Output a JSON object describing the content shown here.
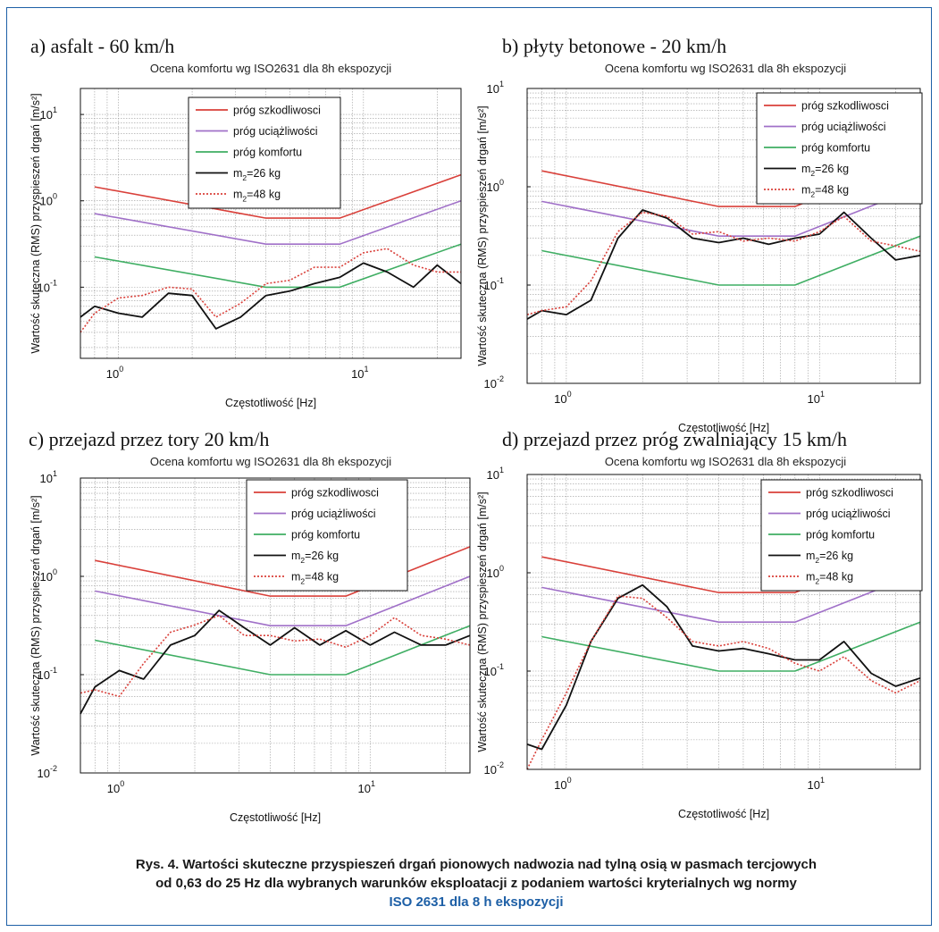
{
  "colors": {
    "harm": "#d9403a",
    "annoy": "#a070c8",
    "comfort": "#3fae63",
    "m26": "#111111",
    "m48": "#d9403a",
    "frame": "#1d5fa6"
  },
  "common": {
    "subtitle": "Ocena komfortu wg ISO2631 dla 8h ekspozycji",
    "xlabel": "Częstotliwość [Hz]",
    "ylabel": "Wartość skuteczna (RMS) przyspieszeń drgań [m/s²]",
    "x_scale": "log",
    "y_scale": "log",
    "grid": true,
    "legend": {
      "harm": "próg szkodliwosci",
      "annoy": "próg uciążliwości",
      "comfort": "próg komfortu",
      "m26_prefix": "m",
      "m26_sub": "2",
      "m26_suffix": "=26 kg",
      "m48_prefix": "m",
      "m48_sub": "2",
      "m48_suffix": "=48 kg"
    },
    "x_ticks": [
      {
        "base": "10",
        "exp": "0",
        "value": 1
      },
      {
        "base": "10",
        "exp": "1",
        "value": 10
      }
    ]
  },
  "chart_data": [
    {
      "panel": "a",
      "type": "line",
      "title": "a) asfalt - 60 km/h",
      "xlim": [
        0.7,
        25
      ],
      "ylim": [
        0.015,
        20
      ],
      "y_ticks": [
        {
          "base": "10",
          "exp": "-1",
          "value": 0.1
        },
        {
          "base": "10",
          "exp": "0",
          "value": 1
        },
        {
          "base": "10",
          "exp": "1",
          "value": 10
        }
      ],
      "legend_position": "top-center",
      "series": [
        {
          "name": "próg szkodliwosci",
          "key": "harm",
          "style": "solid",
          "x": [
            0.8,
            4,
            8,
            25
          ],
          "y": [
            1.45,
            0.63,
            0.63,
            2.0
          ]
        },
        {
          "name": "próg uciążliwości",
          "key": "annoy",
          "style": "solid",
          "x": [
            0.8,
            4,
            8,
            25
          ],
          "y": [
            0.71,
            0.315,
            0.315,
            1.0
          ]
        },
        {
          "name": "próg komfortu",
          "key": "comfort",
          "style": "solid",
          "x": [
            0.8,
            4,
            8,
            25
          ],
          "y": [
            0.224,
            0.1,
            0.1,
            0.315
          ]
        },
        {
          "name": "m2=26 kg",
          "key": "m26",
          "style": "solid",
          "x": [
            0.63,
            0.8,
            1.0,
            1.25,
            1.6,
            2.0,
            2.5,
            3.15,
            4.0,
            5.0,
            6.3,
            8.0,
            10,
            12.5,
            16,
            20,
            25
          ],
          "y": [
            0.045,
            0.06,
            0.05,
            0.045,
            0.085,
            0.08,
            0.033,
            0.045,
            0.08,
            0.09,
            0.11,
            0.13,
            0.19,
            0.15,
            0.1,
            0.18,
            0.11
          ]
        },
        {
          "name": "m2=48 kg",
          "key": "m48",
          "style": "dotted",
          "x": [
            0.63,
            0.8,
            1.0,
            1.25,
            1.6,
            2.0,
            2.5,
            3.15,
            4.0,
            5.0,
            6.3,
            8.0,
            10,
            12.5,
            16,
            20,
            25
          ],
          "y": [
            0.03,
            0.05,
            0.075,
            0.08,
            0.1,
            0.095,
            0.045,
            0.065,
            0.11,
            0.12,
            0.17,
            0.17,
            0.25,
            0.28,
            0.18,
            0.15,
            0.15
          ]
        }
      ]
    },
    {
      "panel": "b",
      "type": "line",
      "title": "b) płyty betonowe - 20 km/h",
      "xlim": [
        0.7,
        25
      ],
      "ylim": [
        0.01,
        10
      ],
      "y_ticks": [
        {
          "base": "10",
          "exp": "-2",
          "value": 0.01
        },
        {
          "base": "10",
          "exp": "-1",
          "value": 0.1
        },
        {
          "base": "10",
          "exp": "0",
          "value": 1
        },
        {
          "base": "10",
          "exp": "1",
          "value": 10
        }
      ],
      "legend_position": "top-right",
      "series": [
        {
          "name": "próg szkodliwosci",
          "key": "harm",
          "style": "solid",
          "x": [
            0.8,
            4,
            8,
            25
          ],
          "y": [
            1.45,
            0.63,
            0.63,
            2.0
          ]
        },
        {
          "name": "próg uciążliwości",
          "key": "annoy",
          "style": "solid",
          "x": [
            0.8,
            4,
            8,
            25
          ],
          "y": [
            0.71,
            0.315,
            0.315,
            1.0
          ]
        },
        {
          "name": "próg komfortu",
          "key": "comfort",
          "style": "solid",
          "x": [
            0.8,
            4,
            8,
            25
          ],
          "y": [
            0.224,
            0.1,
            0.1,
            0.315
          ]
        },
        {
          "name": "m2=26 kg",
          "key": "m26",
          "style": "solid",
          "x": [
            0.63,
            0.8,
            1.0,
            1.25,
            1.6,
            2.0,
            2.5,
            3.15,
            4.0,
            5.0,
            6.3,
            8.0,
            10,
            12.5,
            16,
            20,
            25
          ],
          "y": [
            0.045,
            0.055,
            0.05,
            0.07,
            0.3,
            0.58,
            0.48,
            0.3,
            0.27,
            0.3,
            0.26,
            0.3,
            0.33,
            0.55,
            0.3,
            0.18,
            0.2
          ]
        },
        {
          "name": "m2=48 kg",
          "key": "m48",
          "style": "dotted",
          "x": [
            0.63,
            0.8,
            1.0,
            1.25,
            1.6,
            2.0,
            2.5,
            3.15,
            4.0,
            5.0,
            6.3,
            8.0,
            10,
            12.5,
            16,
            20,
            25
          ],
          "y": [
            0.05,
            0.055,
            0.06,
            0.11,
            0.35,
            0.55,
            0.5,
            0.33,
            0.35,
            0.28,
            0.3,
            0.28,
            0.35,
            0.5,
            0.28,
            0.25,
            0.22
          ]
        }
      ]
    },
    {
      "panel": "c",
      "type": "line",
      "title": "c) przejazd przez tory 20 km/h",
      "xlim": [
        0.7,
        25
      ],
      "ylim": [
        0.01,
        10
      ],
      "y_ticks": [
        {
          "base": "10",
          "exp": "-2",
          "value": 0.01
        },
        {
          "base": "10",
          "exp": "-1",
          "value": 0.1
        },
        {
          "base": "10",
          "exp": "0",
          "value": 1
        },
        {
          "base": "10",
          "exp": "1",
          "value": 10
        }
      ],
      "legend_position": "top-center",
      "series": [
        {
          "name": "próg szkodliwosci",
          "key": "harm",
          "style": "solid",
          "x": [
            0.8,
            4,
            8,
            25
          ],
          "y": [
            1.45,
            0.63,
            0.63,
            2.0
          ]
        },
        {
          "name": "próg uciążliwości",
          "key": "annoy",
          "style": "solid",
          "x": [
            0.8,
            4,
            8,
            25
          ],
          "y": [
            0.71,
            0.315,
            0.315,
            1.0
          ]
        },
        {
          "name": "próg komfortu",
          "key": "comfort",
          "style": "solid",
          "x": [
            0.8,
            4,
            8,
            25
          ],
          "y": [
            0.224,
            0.1,
            0.1,
            0.315
          ]
        },
        {
          "name": "m2=26 kg",
          "key": "m26",
          "style": "solid",
          "x": [
            0.63,
            0.8,
            1.0,
            1.25,
            1.6,
            2.0,
            2.5,
            3.15,
            4.0,
            5.0,
            6.3,
            8.0,
            10,
            12.5,
            16,
            20,
            25
          ],
          "y": [
            0.04,
            0.075,
            0.11,
            0.09,
            0.2,
            0.25,
            0.45,
            0.3,
            0.2,
            0.3,
            0.2,
            0.28,
            0.2,
            0.27,
            0.2,
            0.2,
            0.25
          ]
        },
        {
          "name": "m2=48 kg",
          "key": "m48",
          "style": "dotted",
          "x": [
            0.63,
            0.8,
            1.0,
            1.25,
            1.6,
            2.0,
            2.5,
            3.15,
            4.0,
            5.0,
            6.3,
            8.0,
            10,
            12.5,
            16,
            20,
            25
          ],
          "y": [
            0.065,
            0.07,
            0.06,
            0.13,
            0.27,
            0.32,
            0.4,
            0.25,
            0.25,
            0.22,
            0.23,
            0.19,
            0.25,
            0.38,
            0.25,
            0.23,
            0.2
          ]
        }
      ]
    },
    {
      "panel": "d",
      "type": "line",
      "title": "d) przejazd przez próg zwalniający 15 km/h",
      "xlim": [
        0.7,
        25
      ],
      "ylim": [
        0.01,
        10
      ],
      "y_ticks": [
        {
          "base": "10",
          "exp": "-2",
          "value": 0.01
        },
        {
          "base": "10",
          "exp": "-1",
          "value": 0.1
        },
        {
          "base": "10",
          "exp": "0",
          "value": 1
        },
        {
          "base": "10",
          "exp": "1",
          "value": 10
        }
      ],
      "legend_position": "top-right",
      "series": [
        {
          "name": "próg szkodliwosci",
          "key": "harm",
          "style": "solid",
          "x": [
            0.8,
            4,
            8,
            25
          ],
          "y": [
            1.45,
            0.63,
            0.63,
            2.0
          ]
        },
        {
          "name": "próg uciążliwości",
          "key": "annoy",
          "style": "solid",
          "x": [
            0.8,
            4,
            8,
            25
          ],
          "y": [
            0.71,
            0.315,
            0.315,
            1.0
          ]
        },
        {
          "name": "próg komfortu",
          "key": "comfort",
          "style": "solid",
          "x": [
            0.8,
            4,
            8,
            25
          ],
          "y": [
            0.224,
            0.1,
            0.1,
            0.315
          ]
        },
        {
          "name": "m2=26 kg",
          "key": "m26",
          "style": "solid",
          "x": [
            0.63,
            0.8,
            1.0,
            1.25,
            1.6,
            2.0,
            2.5,
            3.15,
            4.0,
            5.0,
            6.3,
            8.0,
            10,
            12.5,
            16,
            20,
            25
          ],
          "y": [
            0.018,
            0.016,
            0.045,
            0.2,
            0.55,
            0.75,
            0.45,
            0.18,
            0.16,
            0.17,
            0.15,
            0.13,
            0.13,
            0.2,
            0.095,
            0.07,
            0.085
          ]
        },
        {
          "name": "m2=48 kg",
          "key": "m48",
          "style": "dotted",
          "x": [
            0.63,
            0.8,
            1.0,
            1.25,
            1.6,
            2.0,
            2.5,
            3.15,
            4.0,
            5.0,
            6.3,
            8.0,
            10,
            12.5,
            16,
            20,
            25
          ],
          "y": [
            0.01,
            0.02,
            0.06,
            0.2,
            0.58,
            0.55,
            0.35,
            0.2,
            0.18,
            0.2,
            0.17,
            0.12,
            0.1,
            0.14,
            0.08,
            0.06,
            0.08
          ]
        }
      ]
    }
  ],
  "caption": {
    "line1": "Rys. 4. Wartości skuteczne przyspieszeń drgań pionowych nadwozia nad tylną osią w pasmach tercjowych",
    "line2": "od 0,63 do 25 Hz dla wybranych warunków eksploatacji z podaniem wartości kryterialnych wg normy",
    "line3": "ISO 2631 dla 8 h ekspozycji"
  }
}
